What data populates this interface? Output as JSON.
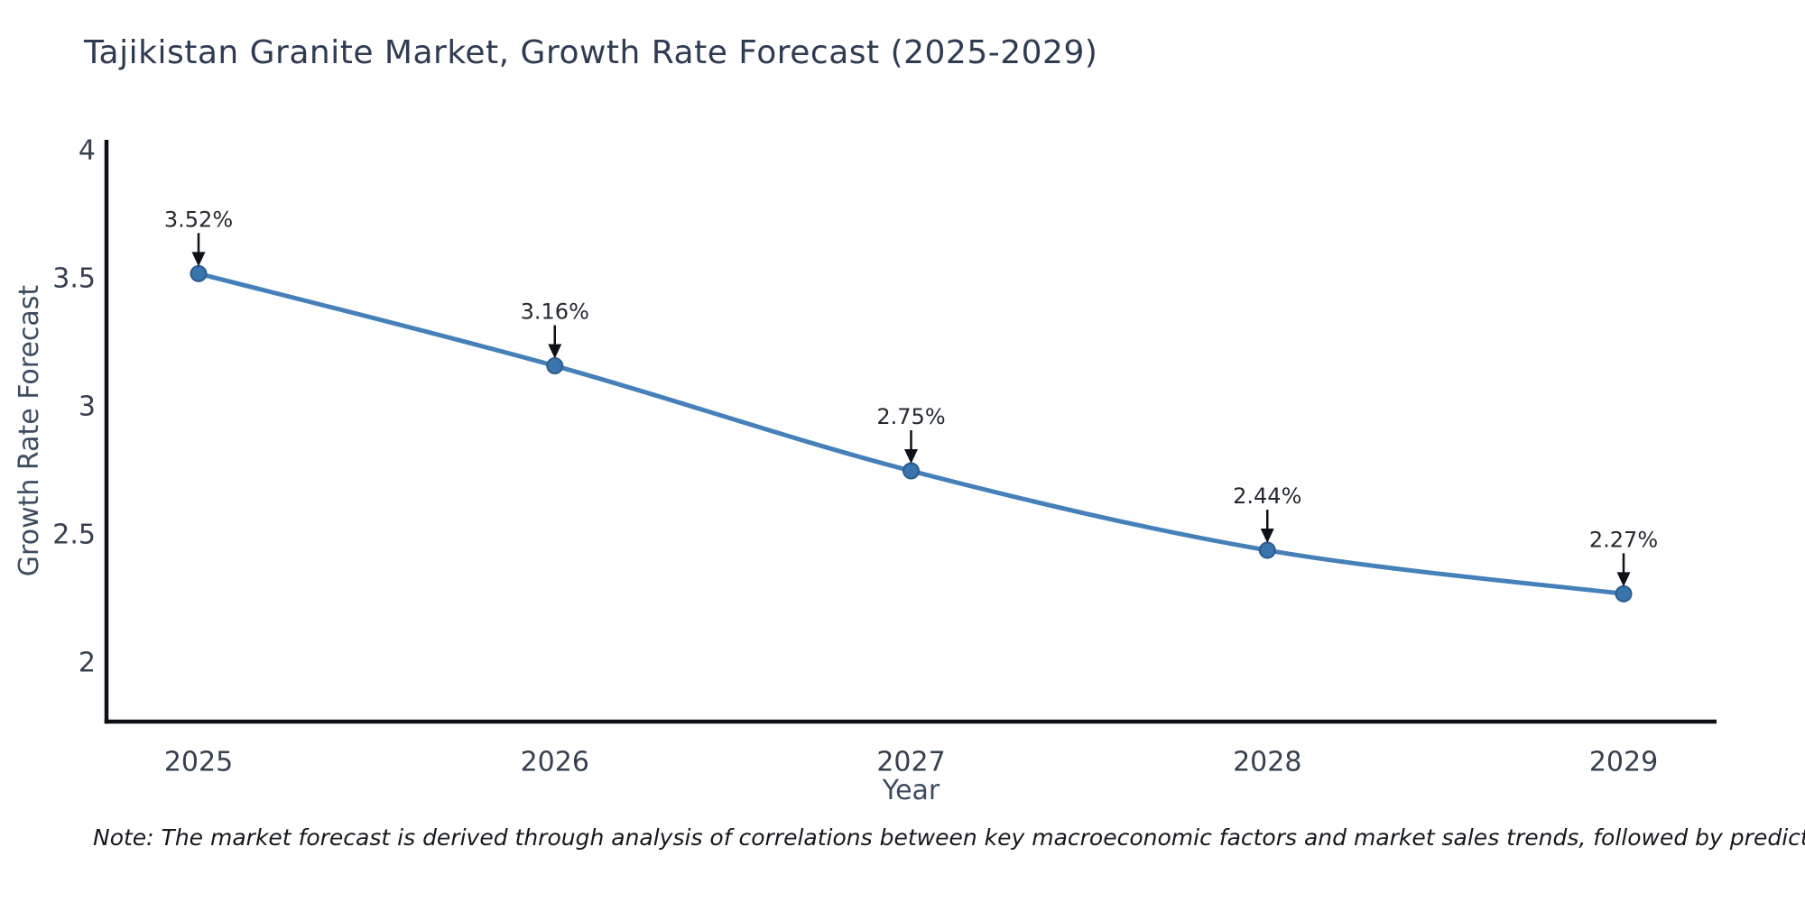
{
  "title": "Tajikistan Granite Market, Growth Rate Forecast (2025-2029)",
  "note": "Note: The market forecast is derived through analysis of correlations between key macroeconomic factors and market sales trends, followed by predictive modeling to project future sales",
  "chart_data": {
    "type": "line",
    "title": "Tajikistan Granite Market, Growth Rate Forecast (2025-2029)",
    "x": [
      2025,
      2026,
      2027,
      2028,
      2029
    ],
    "xticklabels": [
      "2025",
      "2026",
      "2027",
      "2028",
      "2029"
    ],
    "series": [
      {
        "name": "Growth Rate Forecast",
        "values": [
          3.52,
          3.16,
          2.75,
          2.44,
          2.27
        ]
      }
    ],
    "point_labels": [
      "3.52%",
      "3.16%",
      "2.75%",
      "2.44%",
      "2.27%"
    ],
    "xlabel": "Year",
    "ylabel": "Growth Rate Forecast",
    "yticks": [
      2,
      2.5,
      3,
      3.5,
      4
    ],
    "ytick_labels": [
      "2",
      "2.5",
      "3",
      "3.5",
      "4"
    ],
    "ylim": [
      1.77,
      4.04
    ],
    "grid": false,
    "legend_position": "none",
    "line_shape": "spline",
    "annotations_have_arrows": true,
    "colors": {
      "line": "#4580b8",
      "marker_fill": "#3a74ac",
      "marker_edge": "#2c5c8f",
      "axis_line": "#0c1016",
      "title_text": "#2f3b52",
      "tick_text": "#36404f",
      "axis_label_text": "#3d4c61",
      "annotation_text": "#24292f",
      "arrow": "#0e1116"
    }
  }
}
